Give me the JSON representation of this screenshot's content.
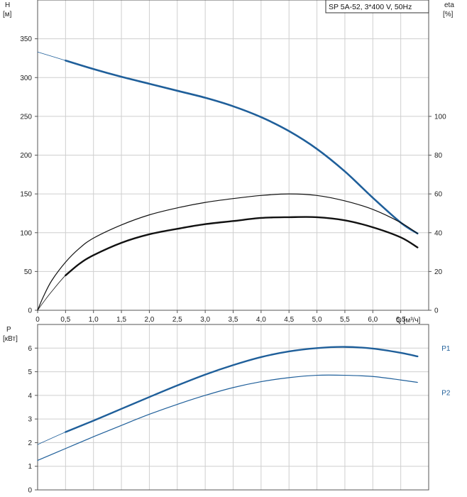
{
  "chart_data": [
    {
      "type": "line",
      "title": "SP 5A-52, 3*400 V, 50Hz",
      "xlabel": "Q [м³/ч]",
      "ylabel": "H\n[м]",
      "y2label": "eta\n[%]",
      "xlim": [
        0,
        7.0
      ],
      "ylim": [
        0,
        400
      ],
      "y2lim": [
        0,
        160
      ],
      "x_ticks": [
        "0",
        "0,5",
        "1,0",
        "1,5",
        "2,0",
        "2,5",
        "3,0",
        "3,5",
        "4,0",
        "4,5",
        "5,0",
        "5,5",
        "6,0",
        "6,5"
      ],
      "y_ticks": [
        "0",
        "50",
        "100",
        "150",
        "200",
        "250",
        "300",
        "350"
      ],
      "y2_ticks": [
        "0",
        "20",
        "40",
        "60",
        "80",
        "100"
      ],
      "grid": true,
      "series": [
        {
          "role": "head",
          "axis": "left",
          "color": "#1f5f9a",
          "thick_from": 0.5,
          "x": [
            0,
            0.5,
            1.0,
            1.5,
            2.0,
            2.5,
            3.0,
            3.5,
            4.0,
            4.5,
            5.0,
            5.5,
            6.0,
            6.5,
            6.8
          ],
          "values": [
            333,
            322,
            311,
            301,
            292,
            283,
            274,
            263,
            249,
            231,
            208,
            179,
            145,
            113,
            99
          ]
        },
        {
          "role": "eta-upper",
          "axis": "left",
          "color": "#111111",
          "thick_from": 99,
          "x": [
            0,
            0.1,
            0.25,
            0.5,
            0.75,
            1.0,
            1.5,
            2.0,
            2.5,
            3.0,
            3.5,
            4.0,
            4.5,
            5.0,
            5.5,
            6.0,
            6.5,
            6.8
          ],
          "values": [
            0,
            17,
            38,
            62,
            80,
            93,
            110,
            123,
            132,
            139,
            144,
            148,
            150,
            148,
            141,
            130,
            113,
            99
          ]
        },
        {
          "role": "eta-lower",
          "axis": "left",
          "color": "#111111",
          "thick_from": 0.5,
          "x": [
            0,
            0.1,
            0.25,
            0.5,
            0.75,
            1.0,
            1.5,
            2.0,
            2.5,
            3.0,
            3.5,
            4.0,
            4.5,
            5.0,
            5.5,
            6.0,
            6.5,
            6.8
          ],
          "values": [
            0,
            10,
            24,
            45,
            60,
            71,
            87,
            98,
            105,
            111,
            115,
            119,
            120,
            120,
            116,
            107,
            94,
            81
          ]
        }
      ]
    },
    {
      "type": "line",
      "ylabel": "P\n[кВт]",
      "xlim": [
        0,
        7.0
      ],
      "ylim": [
        0,
        7
      ],
      "y_ticks": [
        "0",
        "1",
        "2",
        "3",
        "4",
        "5",
        "6"
      ],
      "grid": true,
      "series": [
        {
          "name": "P1",
          "color": "#1f5f9a",
          "thick_from": 0.5,
          "x": [
            0,
            0.5,
            1.0,
            1.5,
            2.0,
            2.5,
            3.0,
            3.5,
            4.0,
            4.5,
            5.0,
            5.5,
            6.0,
            6.5,
            6.8
          ],
          "values": [
            1.92,
            2.45,
            2.93,
            3.43,
            3.93,
            4.42,
            4.88,
            5.28,
            5.62,
            5.86,
            6.0,
            6.05,
            5.98,
            5.8,
            5.65
          ]
        },
        {
          "name": "P2",
          "color": "#1f5f9a",
          "thick_from": 99,
          "x": [
            0,
            0.5,
            1.0,
            1.5,
            2.0,
            2.5,
            3.0,
            3.5,
            4.0,
            4.5,
            5.0,
            5.5,
            6.0,
            6.5,
            6.8
          ],
          "values": [
            1.25,
            1.75,
            2.25,
            2.73,
            3.2,
            3.62,
            4.0,
            4.33,
            4.58,
            4.75,
            4.85,
            4.85,
            4.8,
            4.65,
            4.55
          ]
        }
      ]
    }
  ]
}
